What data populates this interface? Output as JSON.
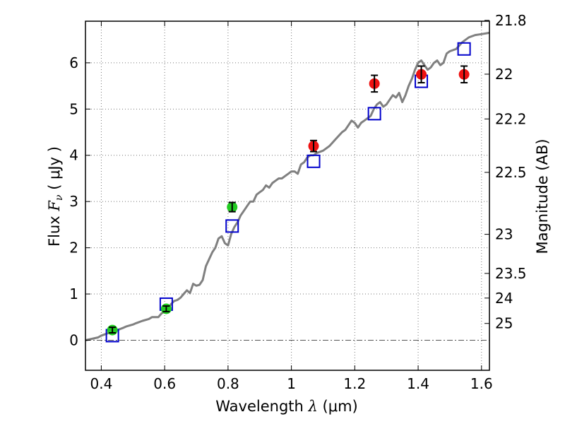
{
  "chart_data": {
    "type": "scatter",
    "xlabel": "Wavelength",
    "xlabel_math": "λ",
    "xlabel_unit": "(μm)",
    "ylabel": "Flux",
    "ylabel_math": "F",
    "ylabel_sub": "ν",
    "ylabel_unit": "( μJy )",
    "y2label": "Magnitude (AB)",
    "xlim": [
      0.35,
      1.625
    ],
    "ylim": [
      -0.65,
      6.9
    ],
    "grid": true,
    "x_ticks": [
      0.4,
      0.6,
      0.8,
      1.0,
      1.2,
      1.4,
      1.6
    ],
    "x_tick_labels": [
      "0.4",
      "0.6",
      "0.8",
      "1",
      "1.2",
      "1.4",
      "1.6"
    ],
    "y_ticks": [
      0,
      1,
      2,
      3,
      4,
      5,
      6
    ],
    "y_tick_labels": [
      "0",
      "1",
      "2",
      "3",
      "4",
      "5",
      "6"
    ],
    "y2_ticks": [
      21.8,
      22,
      22.2,
      22.5,
      23,
      23.5,
      24,
      25
    ],
    "y2_tick_labels": [
      "21.8",
      "22",
      "22.2",
      "22.5",
      "23",
      "23.5",
      "24",
      "25"
    ],
    "series": [
      {
        "name": "model-spectrum",
        "kind": "line",
        "color": "#808080",
        "x": [
          0.35,
          0.37,
          0.39,
          0.4,
          0.42,
          0.43,
          0.45,
          0.47,
          0.48,
          0.5,
          0.51,
          0.53,
          0.55,
          0.56,
          0.58,
          0.59,
          0.6,
          0.61,
          0.62,
          0.63,
          0.64,
          0.65,
          0.66,
          0.67,
          0.68,
          0.69,
          0.7,
          0.71,
          0.72,
          0.73,
          0.74,
          0.75,
          0.76,
          0.77,
          0.78,
          0.79,
          0.8,
          0.81,
          0.82,
          0.83,
          0.84,
          0.85,
          0.86,
          0.87,
          0.88,
          0.89,
          0.9,
          0.91,
          0.92,
          0.93,
          0.94,
          0.95,
          0.96,
          0.97,
          0.98,
          0.99,
          1.0,
          1.01,
          1.02,
          1.03,
          1.04,
          1.05,
          1.06,
          1.07,
          1.08,
          1.1,
          1.12,
          1.14,
          1.16,
          1.17,
          1.18,
          1.19,
          1.2,
          1.21,
          1.22,
          1.23,
          1.24,
          1.25,
          1.26,
          1.27,
          1.28,
          1.29,
          1.3,
          1.31,
          1.32,
          1.33,
          1.34,
          1.35,
          1.36,
          1.37,
          1.38,
          1.39,
          1.4,
          1.41,
          1.42,
          1.43,
          1.44,
          1.45,
          1.46,
          1.47,
          1.48,
          1.49,
          1.5,
          1.52,
          1.54,
          1.56,
          1.58,
          1.6,
          1.625
        ],
        "y": [
          0.0,
          0.03,
          0.06,
          0.1,
          0.15,
          0.18,
          0.22,
          0.27,
          0.3,
          0.34,
          0.37,
          0.42,
          0.46,
          0.5,
          0.5,
          0.58,
          0.62,
          0.66,
          0.78,
          0.85,
          0.87,
          0.92,
          1.0,
          1.08,
          1.02,
          1.22,
          1.18,
          1.2,
          1.3,
          1.6,
          1.75,
          1.9,
          2.0,
          2.2,
          2.25,
          2.1,
          2.05,
          2.3,
          2.45,
          2.55,
          2.7,
          2.8,
          2.9,
          3.0,
          3.0,
          3.15,
          3.2,
          3.25,
          3.35,
          3.3,
          3.4,
          3.45,
          3.5,
          3.5,
          3.55,
          3.6,
          3.65,
          3.65,
          3.6,
          3.8,
          3.85,
          3.95,
          4.0,
          4.0,
          4.05,
          4.1,
          4.2,
          4.35,
          4.5,
          4.55,
          4.65,
          4.75,
          4.7,
          4.6,
          4.7,
          4.75,
          4.8,
          4.85,
          5.0,
          5.1,
          5.15,
          5.05,
          5.1,
          5.2,
          5.3,
          5.25,
          5.35,
          5.15,
          5.3,
          5.5,
          5.65,
          5.85,
          6.0,
          6.05,
          5.95,
          5.85,
          5.9,
          6.0,
          6.05,
          5.95,
          6.0,
          6.2,
          6.25,
          6.3,
          6.45,
          6.55,
          6.6,
          6.62,
          6.65
        ]
      },
      {
        "name": "model-photometry",
        "kind": "square-marker",
        "color": "#0000cc",
        "x": [
          0.435,
          0.605,
          0.813,
          1.07,
          1.262,
          1.41,
          1.545
        ],
        "y": [
          0.1,
          0.78,
          2.47,
          3.87,
          4.9,
          5.6,
          6.3
        ]
      },
      {
        "name": "optical-observations",
        "kind": "circle-marker",
        "color": "#22cc22",
        "x": [
          0.435,
          0.605,
          0.813
        ],
        "y": [
          0.22,
          0.68,
          2.88
        ],
        "err": [
          0.06,
          0.06,
          0.1
        ]
      },
      {
        "name": "infrared-observations",
        "kind": "circle-marker",
        "color": "#ee1111",
        "x": [
          1.07,
          1.262,
          1.41,
          1.545
        ],
        "y": [
          4.2,
          5.55,
          5.75,
          5.75
        ],
        "err": [
          0.12,
          0.18,
          0.18,
          0.18
        ]
      }
    ]
  }
}
